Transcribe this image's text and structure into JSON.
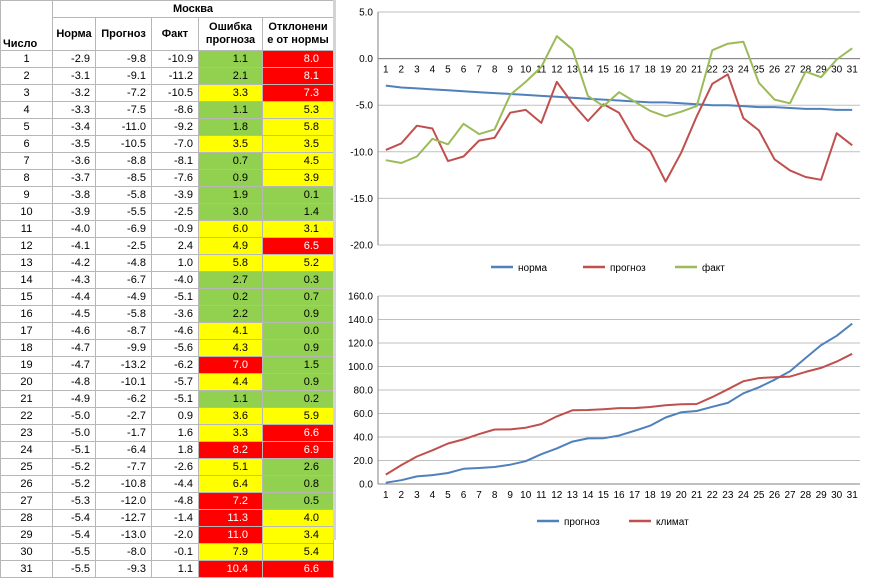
{
  "table": {
    "city": "Москва",
    "headers": {
      "day": "Число",
      "norm": "Норма",
      "forecast": "Прогноз",
      "fact": "Факт",
      "error_l1": "Ошибка",
      "error_l2": "прогноза",
      "dev_l1": "Отклонени",
      "dev_l2": "е от нормы"
    },
    "colors": {
      "green": "#92d050",
      "yellow": "#ffff00",
      "red": "#ff0000"
    },
    "rows": [
      {
        "day": "1",
        "norm": "-2.9",
        "forecast": "-9.8",
        "fact": "-10.9",
        "error": "1.1",
        "error_color": "green",
        "dev": "8.0",
        "dev_color": "red"
      },
      {
        "day": "2",
        "norm": "-3.1",
        "forecast": "-9.1",
        "fact": "-11.2",
        "error": "2.1",
        "error_color": "green",
        "dev": "8.1",
        "dev_color": "red"
      },
      {
        "day": "3",
        "norm": "-3.2",
        "forecast": "-7.2",
        "fact": "-10.5",
        "error": "3.3",
        "error_color": "yellow",
        "dev": "7.3",
        "dev_color": "red"
      },
      {
        "day": "4",
        "norm": "-3.3",
        "forecast": "-7.5",
        "fact": "-8.6",
        "error": "1.1",
        "error_color": "green",
        "dev": "5.3",
        "dev_color": "yellow"
      },
      {
        "day": "5",
        "norm": "-3.4",
        "forecast": "-11.0",
        "fact": "-9.2",
        "error": "1.8",
        "error_color": "green",
        "dev": "5.8",
        "dev_color": "yellow"
      },
      {
        "day": "6",
        "norm": "-3.5",
        "forecast": "-10.5",
        "fact": "-7.0",
        "error": "3.5",
        "error_color": "yellow",
        "dev": "3.5",
        "dev_color": "yellow"
      },
      {
        "day": "7",
        "norm": "-3.6",
        "forecast": "-8.8",
        "fact": "-8.1",
        "error": "0.7",
        "error_color": "green",
        "dev": "4.5",
        "dev_color": "yellow"
      },
      {
        "day": "8",
        "norm": "-3.7",
        "forecast": "-8.5",
        "fact": "-7.6",
        "error": "0.9",
        "error_color": "green",
        "dev": "3.9",
        "dev_color": "yellow"
      },
      {
        "day": "9",
        "norm": "-3.8",
        "forecast": "-5.8",
        "fact": "-3.9",
        "error": "1.9",
        "error_color": "green",
        "dev": "0.1",
        "dev_color": "green"
      },
      {
        "day": "10",
        "norm": "-3.9",
        "forecast": "-5.5",
        "fact": "-2.5",
        "error": "3.0",
        "error_color": "green",
        "dev": "1.4",
        "dev_color": "green"
      },
      {
        "day": "11",
        "norm": "-4.0",
        "forecast": "-6.9",
        "fact": "-0.9",
        "error": "6.0",
        "error_color": "yellow",
        "dev": "3.1",
        "dev_color": "yellow"
      },
      {
        "day": "12",
        "norm": "-4.1",
        "forecast": "-2.5",
        "fact": "2.4",
        "error": "4.9",
        "error_color": "yellow",
        "dev": "6.5",
        "dev_color": "red"
      },
      {
        "day": "13",
        "norm": "-4.2",
        "forecast": "-4.8",
        "fact": "1.0",
        "error": "5.8",
        "error_color": "yellow",
        "dev": "5.2",
        "dev_color": "yellow"
      },
      {
        "day": "14",
        "norm": "-4.3",
        "forecast": "-6.7",
        "fact": "-4.0",
        "error": "2.7",
        "error_color": "green",
        "dev": "0.3",
        "dev_color": "green"
      },
      {
        "day": "15",
        "norm": "-4.4",
        "forecast": "-4.9",
        "fact": "-5.1",
        "error": "0.2",
        "error_color": "green",
        "dev": "0.7",
        "dev_color": "green"
      },
      {
        "day": "16",
        "norm": "-4.5",
        "forecast": "-5.8",
        "fact": "-3.6",
        "error": "2.2",
        "error_color": "green",
        "dev": "0.9",
        "dev_color": "green"
      },
      {
        "day": "17",
        "norm": "-4.6",
        "forecast": "-8.7",
        "fact": "-4.6",
        "error": "4.1",
        "error_color": "yellow",
        "dev": "0.0",
        "dev_color": "green"
      },
      {
        "day": "18",
        "norm": "-4.7",
        "forecast": "-9.9",
        "fact": "-5.6",
        "error": "4.3",
        "error_color": "yellow",
        "dev": "0.9",
        "dev_color": "green"
      },
      {
        "day": "19",
        "norm": "-4.7",
        "forecast": "-13.2",
        "fact": "-6.2",
        "error": "7.0",
        "error_color": "red",
        "dev": "1.5",
        "dev_color": "green"
      },
      {
        "day": "20",
        "norm": "-4.8",
        "forecast": "-10.1",
        "fact": "-5.7",
        "error": "4.4",
        "error_color": "yellow",
        "dev": "0.9",
        "dev_color": "green"
      },
      {
        "day": "21",
        "norm": "-4.9",
        "forecast": "-6.2",
        "fact": "-5.1",
        "error": "1.1",
        "error_color": "green",
        "dev": "0.2",
        "dev_color": "green"
      },
      {
        "day": "22",
        "norm": "-5.0",
        "forecast": "-2.7",
        "fact": "0.9",
        "error": "3.6",
        "error_color": "yellow",
        "dev": "5.9",
        "dev_color": "yellow"
      },
      {
        "day": "23",
        "norm": "-5.0",
        "forecast": "-1.7",
        "fact": "1.6",
        "error": "3.3",
        "error_color": "yellow",
        "dev": "6.6",
        "dev_color": "red"
      },
      {
        "day": "24",
        "norm": "-5.1",
        "forecast": "-6.4",
        "fact": "1.8",
        "error": "8.2",
        "error_color": "red",
        "dev": "6.9",
        "dev_color": "red"
      },
      {
        "day": "25",
        "norm": "-5.2",
        "forecast": "-7.7",
        "fact": "-2.6",
        "error": "5.1",
        "error_color": "yellow",
        "dev": "2.6",
        "dev_color": "green"
      },
      {
        "day": "26",
        "norm": "-5.2",
        "forecast": "-10.8",
        "fact": "-4.4",
        "error": "6.4",
        "error_color": "yellow",
        "dev": "0.8",
        "dev_color": "green"
      },
      {
        "day": "27",
        "norm": "-5.3",
        "forecast": "-12.0",
        "fact": "-4.8",
        "error": "7.2",
        "error_color": "red",
        "dev": "0.5",
        "dev_color": "green"
      },
      {
        "day": "28",
        "norm": "-5.4",
        "forecast": "-12.7",
        "fact": "-1.4",
        "error": "11.3",
        "error_color": "red",
        "dev": "4.0",
        "dev_color": "yellow"
      },
      {
        "day": "29",
        "norm": "-5.4",
        "forecast": "-13.0",
        "fact": "-2.0",
        "error": "11.0",
        "error_color": "red",
        "dev": "3.4",
        "dev_color": "yellow"
      },
      {
        "day": "30",
        "norm": "-5.5",
        "forecast": "-8.0",
        "fact": "-0.1",
        "error": "7.9",
        "error_color": "yellow",
        "dev": "5.4",
        "dev_color": "yellow"
      },
      {
        "day": "31",
        "norm": "-5.5",
        "forecast": "-9.3",
        "fact": "1.1",
        "error": "10.4",
        "error_color": "red",
        "dev": "6.6",
        "dev_color": "red"
      }
    ]
  },
  "chart_data": [
    {
      "type": "line",
      "title": "",
      "x": [
        1,
        2,
        3,
        4,
        5,
        6,
        7,
        8,
        9,
        10,
        11,
        12,
        13,
        14,
        15,
        16,
        17,
        18,
        19,
        20,
        21,
        22,
        23,
        24,
        25,
        26,
        27,
        28,
        29,
        30,
        31
      ],
      "xtick_position": "zero-line",
      "ylim": [
        -20,
        5
      ],
      "yticks": [
        5.0,
        0.0,
        -5.0,
        -10.0,
        -15.0,
        -20.0
      ],
      "ytick_labels": [
        "5.0",
        "0.0",
        "-5.0",
        "-10.0",
        "-15.0",
        "-20.0"
      ],
      "grid": "horizontal",
      "legend": "bottom",
      "series": [
        {
          "name": "норма",
          "color": "#4f81bd",
          "values": [
            -2.9,
            -3.1,
            -3.2,
            -3.3,
            -3.4,
            -3.5,
            -3.6,
            -3.7,
            -3.8,
            -3.9,
            -4.0,
            -4.1,
            -4.2,
            -4.3,
            -4.4,
            -4.5,
            -4.6,
            -4.7,
            -4.7,
            -4.8,
            -4.9,
            -5.0,
            -5.0,
            -5.1,
            -5.2,
            -5.2,
            -5.3,
            -5.4,
            -5.4,
            -5.5,
            -5.5
          ]
        },
        {
          "name": "прогноз",
          "color": "#c0504d",
          "values": [
            -9.8,
            -9.1,
            -7.2,
            -7.5,
            -11.0,
            -10.5,
            -8.8,
            -8.5,
            -5.8,
            -5.5,
            -6.9,
            -2.5,
            -4.8,
            -6.7,
            -4.9,
            -5.8,
            -8.7,
            -9.9,
            -13.2,
            -10.1,
            -6.2,
            -2.7,
            -1.7,
            -6.4,
            -7.7,
            -10.8,
            -12.0,
            -12.7,
            -13.0,
            -8.0,
            -9.3
          ]
        },
        {
          "name": "факт",
          "color": "#9bbb59",
          "values": [
            -10.9,
            -11.2,
            -10.5,
            -8.6,
            -9.2,
            -7.0,
            -8.1,
            -7.6,
            -3.9,
            -2.5,
            -0.9,
            2.4,
            1.0,
            -4.0,
            -5.1,
            -3.6,
            -4.6,
            -5.6,
            -6.2,
            -5.7,
            -5.1,
            0.9,
            1.6,
            1.8,
            -2.6,
            -4.4,
            -4.8,
            -1.4,
            -2.0,
            -0.1,
            1.1
          ]
        }
      ]
    },
    {
      "type": "line",
      "title": "",
      "x": [
        1,
        2,
        3,
        4,
        5,
        6,
        7,
        8,
        9,
        10,
        11,
        12,
        13,
        14,
        15,
        16,
        17,
        18,
        19,
        20,
        21,
        22,
        23,
        24,
        25,
        26,
        27,
        28,
        29,
        30,
        31
      ],
      "xtick_position": "bottom",
      "ylim": [
        0,
        160
      ],
      "yticks": [
        0.0,
        20.0,
        40.0,
        60.0,
        80.0,
        100.0,
        120.0,
        140.0,
        160.0
      ],
      "ytick_labels": [
        "0.0",
        "20.0",
        "40.0",
        "60.0",
        "80.0",
        "100.0",
        "120.0",
        "140.0",
        "160.0"
      ],
      "grid": "horizontal",
      "legend": "bottom",
      "series": [
        {
          "name": "прогноз",
          "color": "#4f81bd",
          "values": [
            1.1,
            3.2,
            6.5,
            7.6,
            9.4,
            12.9,
            13.6,
            14.5,
            16.4,
            19.4,
            25.4,
            30.3,
            36.1,
            38.8,
            39.0,
            41.2,
            45.3,
            49.6,
            56.6,
            61.0,
            62.1,
            65.7,
            69.0,
            77.2,
            82.3,
            88.7,
            95.9,
            107.2,
            118.2,
            126.1,
            136.5
          ]
        },
        {
          "name": "климат",
          "color": "#c0504d",
          "values": [
            8.0,
            16.1,
            23.4,
            28.7,
            34.5,
            38.0,
            42.5,
            46.4,
            46.5,
            47.9,
            51.0,
            57.5,
            62.7,
            63.0,
            63.7,
            64.6,
            64.6,
            65.5,
            67.0,
            67.9,
            68.1,
            74.0,
            80.6,
            87.5,
            90.1,
            90.9,
            91.4,
            95.4,
            98.8,
            104.2,
            110.8
          ]
        }
      ]
    }
  ]
}
